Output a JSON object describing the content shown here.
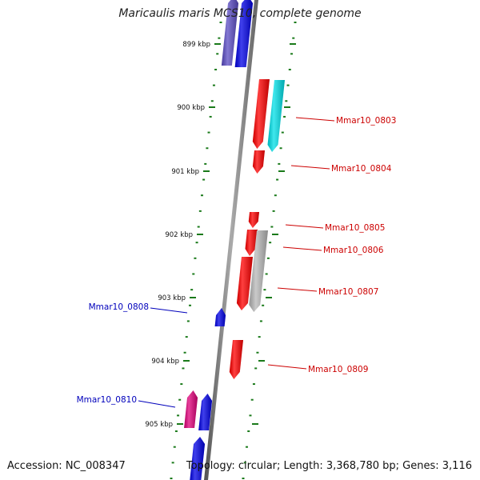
{
  "title": "Maricaulis maris MCS10, complete genome",
  "footer": {
    "accession": "Accession: NC_008347",
    "summary": "Topology: circular; Length: 3,368,780 bp; Genes: 3,116"
  },
  "scale": {
    "ticks": [
      "899 kbp",
      "900 kbp",
      "901 kbp",
      "902 kbp",
      "903 kbp",
      "904 kbp",
      "905 kbp"
    ]
  },
  "genes": [
    {
      "label": "",
      "strand": "minus",
      "color": "#5a4bc4"
    },
    {
      "label": "",
      "strand": "minus",
      "color": "#0000e6"
    },
    {
      "label": "Mmar10_0803",
      "strand": "plus",
      "color": "#ff0000"
    },
    {
      "label": "",
      "strand": "plus",
      "color": "#00e0e8"
    },
    {
      "label": "Mmar10_0804",
      "strand": "plus",
      "color": "#ff0000"
    },
    {
      "label": "Mmar10_0805",
      "strand": "plus",
      "color": "#ff0000"
    },
    {
      "label": "Mmar10_0806",
      "strand": "plus",
      "color": "#ff0000"
    },
    {
      "label": "Mmar10_0807",
      "strand": "plus",
      "color": "#b8b8b8"
    },
    {
      "label": "",
      "strand": "plus",
      "color": "#ff0000"
    },
    {
      "label": "Mmar10_0808",
      "strand": "minus",
      "color": "#0000e6"
    },
    {
      "label": "Mmar10_0809",
      "strand": "plus",
      "color": "#ff0000"
    },
    {
      "label": "Mmar10_0810",
      "strand": "minus",
      "color": "#e0007a"
    },
    {
      "label": "",
      "strand": "minus",
      "color": "#0000e6"
    },
    {
      "label": "",
      "strand": "minus",
      "color": "#0000e6"
    }
  ],
  "colors": {
    "plus_label": "#cc0000",
    "minus_label": "#0000bb",
    "tick_marks": "#1a7a1a",
    "backbone": "#8a8a8a"
  }
}
